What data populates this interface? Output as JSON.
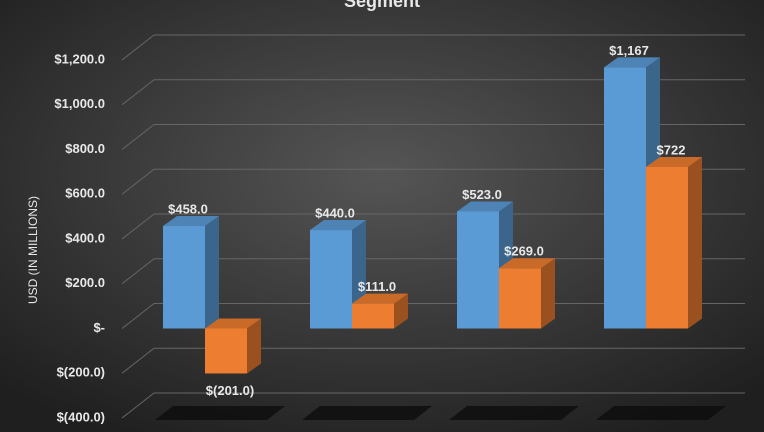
{
  "chart_data": {
    "type": "bar3d",
    "title": "Segment",
    "y_label": "USD (IN MILLIONS)",
    "categories": [
      null,
      null,
      null,
      null
    ],
    "series": [
      {
        "color": "#5b9bd5",
        "values": [
          458.0,
          440.0,
          523.0,
          1167
        ],
        "value_labels": [
          "$458.0",
          "$440.0",
          "$523.0",
          "$1,167"
        ]
      },
      {
        "color": "#ed7d31",
        "values": [
          -201.0,
          111.0,
          269.0,
          722
        ],
        "value_labels": [
          "$(201.0)",
          "$111.0",
          "$269.0",
          "$722"
        ]
      }
    ],
    "ylim": [
      -400,
      1200
    ],
    "yticks": [
      {
        "value": -400,
        "label": "$(400.0)"
      },
      {
        "value": -200,
        "label": "$(200.0)"
      },
      {
        "value": 0,
        "label": "$-"
      },
      {
        "value": 200,
        "label": "$200.0"
      },
      {
        "value": 400,
        "label": "$400.0"
      },
      {
        "value": 600,
        "label": "$600.0"
      },
      {
        "value": 800,
        "label": "$800.0"
      },
      {
        "value": 1000,
        "label": "$1,000.0"
      },
      {
        "value": 1200,
        "label": "$1,200.0"
      }
    ],
    "grid": true
  }
}
